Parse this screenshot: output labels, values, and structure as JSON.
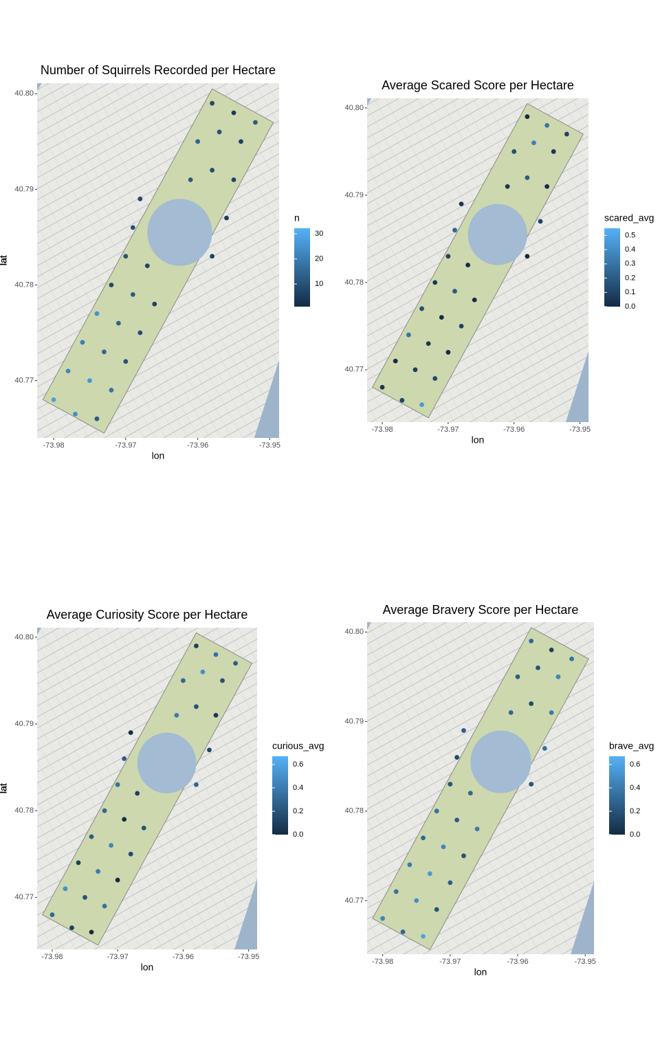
{
  "chart_data": [
    {
      "type": "scatter",
      "title": "Number of Squirrels Recorded per Hectare",
      "x_label": "lon",
      "y_label": "lat",
      "legend_title": "n",
      "x": [
        -73.98,
        -73.977,
        -73.974,
        -73.978,
        -73.975,
        -73.972,
        -73.976,
        -73.973,
        -73.97,
        -73.974,
        -73.971,
        -73.968,
        -73.972,
        -73.969,
        -73.966,
        -73.97,
        -73.967,
        -73.969,
        -73.968,
        -73.958,
        -73.956,
        -73.961,
        -73.958,
        -73.955,
        -73.96,
        -73.957,
        -73.954,
        -73.958,
        -73.955,
        -73.952
      ],
      "y": [
        40.768,
        40.7665,
        40.766,
        40.771,
        40.77,
        40.769,
        40.774,
        40.773,
        40.772,
        40.777,
        40.776,
        40.775,
        40.78,
        40.779,
        40.778,
        40.783,
        40.782,
        40.786,
        40.789,
        40.783,
        40.787,
        40.791,
        40.792,
        40.791,
        40.795,
        40.796,
        40.795,
        40.799,
        40.798,
        40.797
      ],
      "values": [
        28,
        24,
        12,
        22,
        26,
        18,
        20,
        15,
        10,
        25,
        14,
        9,
        8,
        12,
        6,
        10,
        7,
        9,
        8,
        6,
        5,
        12,
        9,
        7,
        14,
        10,
        6,
        8,
        5,
        12
      ],
      "xlim": [
        -73.9823,
        -73.9487
      ],
      "ylim": [
        40.764,
        40.8011
      ],
      "xticks": [
        -73.98,
        -73.97,
        -73.96,
        -73.95
      ],
      "yticks": [
        40.77,
        40.78,
        40.79,
        {
          "value": 40.8,
          "label": "40.80"
        }
      ],
      "color_low": "#132b43",
      "color_high": "#56b1f7",
      "color_lim": [
        1,
        32.2
      ],
      "color_ticks": [
        10,
        20,
        30
      ]
    },
    {
      "type": "scatter",
      "title": "Average Scared Score per Hectare",
      "x_label": "lon",
      "y_label": "lat",
      "legend_title": "scared_avg",
      "x": [
        -73.98,
        -73.977,
        -73.974,
        -73.978,
        -73.975,
        -73.972,
        -73.976,
        -73.973,
        -73.97,
        -73.974,
        -73.971,
        -73.968,
        -73.972,
        -73.969,
        -73.966,
        -73.97,
        -73.967,
        -73.969,
        -73.968,
        -73.958,
        -73.956,
        -73.961,
        -73.958,
        -73.955,
        -73.96,
        -73.957,
        -73.954,
        -73.958,
        -73.955,
        -73.952
      ],
      "y": [
        40.768,
        40.7665,
        40.766,
        40.771,
        40.77,
        40.769,
        40.774,
        40.773,
        40.772,
        40.777,
        40.776,
        40.775,
        40.78,
        40.779,
        40.778,
        40.783,
        40.782,
        40.786,
        40.789,
        40.783,
        40.787,
        40.791,
        40.792,
        40.791,
        40.795,
        40.796,
        40.795,
        40.799,
        40.798,
        40.797
      ],
      "values": [
        0.05,
        0.1,
        0.45,
        0.0,
        0.08,
        0.12,
        0.3,
        0.05,
        0.0,
        0.15,
        0.0,
        0.1,
        0.05,
        0.2,
        0.0,
        0.1,
        0.0,
        0.25,
        0.05,
        0.0,
        0.1,
        0.05,
        0.2,
        0.0,
        0.15,
        0.35,
        0.05,
        0.0,
        0.3,
        0.1
      ],
      "xlim": [
        -73.9823,
        -73.9487
      ],
      "ylim": [
        40.764,
        40.8011
      ],
      "xticks": [
        -73.98,
        -73.97,
        -73.96,
        -73.95
      ],
      "yticks": [
        40.77,
        40.78,
        40.79,
        {
          "value": 40.8,
          "label": "40.80"
        }
      ],
      "color_low": "#132b43",
      "color_high": "#56b1f7",
      "color_lim": [
        0,
        0.55
      ],
      "color_ticks": [
        {
          "value": 0,
          "label": "0.0"
        },
        0.1,
        0.2,
        0.3,
        0.4,
        0.5
      ]
    },
    {
      "type": "scatter",
      "title": "Average Curiosity Score per Hectare",
      "x_label": "lon",
      "y_label": "lat",
      "legend_title": "curious_avg",
      "x": [
        -73.98,
        -73.977,
        -73.974,
        -73.978,
        -73.975,
        -73.972,
        -73.976,
        -73.973,
        -73.97,
        -73.974,
        -73.971,
        -73.968,
        -73.972,
        -73.969,
        -73.966,
        -73.97,
        -73.967,
        -73.969,
        -73.968,
        -73.958,
        -73.956,
        -73.961,
        -73.958,
        -73.955,
        -73.96,
        -73.957,
        -73.954,
        -73.958,
        -73.955,
        -73.952
      ],
      "y": [
        40.768,
        40.7665,
        40.766,
        40.771,
        40.77,
        40.769,
        40.774,
        40.773,
        40.772,
        40.777,
        40.776,
        40.775,
        40.78,
        40.779,
        40.778,
        40.783,
        40.782,
        40.786,
        40.789,
        40.783,
        40.787,
        40.791,
        40.792,
        40.791,
        40.795,
        40.796,
        40.795,
        40.799,
        40.798,
        40.797
      ],
      "values": [
        0.3,
        0.1,
        0.0,
        0.5,
        0.2,
        0.35,
        0.1,
        0.4,
        0.0,
        0.25,
        0.45,
        0.15,
        0.3,
        0.0,
        0.2,
        0.35,
        0.1,
        0.25,
        0.0,
        0.3,
        0.15,
        0.4,
        0.2,
        0.05,
        0.3,
        0.5,
        0.2,
        0.1,
        0.35,
        0.25
      ],
      "xlim": [
        -73.9823,
        -73.9487
      ],
      "ylim": [
        40.764,
        40.8011
      ],
      "xticks": [
        -73.98,
        -73.97,
        -73.96,
        -73.95
      ],
      "yticks": [
        40.77,
        40.78,
        40.79,
        {
          "value": 40.8,
          "label": "40.80"
        }
      ],
      "color_low": "#132b43",
      "color_high": "#56b1f7",
      "color_lim": [
        0,
        0.67
      ],
      "color_ticks": [
        {
          "value": 0,
          "label": "0.0"
        },
        0.2,
        0.4,
        0.6
      ]
    },
    {
      "type": "scatter",
      "title": "Average Bravery Score per Hectare",
      "x_label": "lon",
      "y_label": "lat",
      "legend_title": "brave_avg",
      "x": [
        -73.98,
        -73.977,
        -73.974,
        -73.978,
        -73.975,
        -73.972,
        -73.976,
        -73.973,
        -73.97,
        -73.974,
        -73.971,
        -73.968,
        -73.972,
        -73.969,
        -73.966,
        -73.97,
        -73.967,
        -73.969,
        -73.968,
        -73.958,
        -73.956,
        -73.961,
        -73.958,
        -73.955,
        -73.96,
        -73.957,
        -73.954,
        -73.958,
        -73.955,
        -73.952
      ],
      "y": [
        40.768,
        40.7665,
        40.766,
        40.771,
        40.77,
        40.769,
        40.774,
        40.773,
        40.772,
        40.777,
        40.776,
        40.775,
        40.78,
        40.779,
        40.778,
        40.783,
        40.782,
        40.786,
        40.789,
        40.783,
        40.787,
        40.791,
        40.792,
        40.791,
        40.795,
        40.796,
        40.795,
        40.799,
        40.798,
        40.797
      ],
      "values": [
        0.45,
        0.3,
        0.6,
        0.35,
        0.5,
        0.2,
        0.4,
        0.55,
        0.25,
        0.3,
        0.45,
        0.2,
        0.35,
        0.25,
        0.4,
        0.2,
        0.3,
        0.15,
        0.25,
        0.2,
        0.35,
        0.3,
        0.15,
        0.4,
        0.25,
        0.2,
        0.45,
        0.3,
        0.1,
        0.35
      ],
      "xlim": [
        -73.9823,
        -73.9487
      ],
      "ylim": [
        40.764,
        40.8011
      ],
      "xticks": [
        -73.98,
        -73.97,
        -73.96,
        -73.95
      ],
      "yticks": [
        40.77,
        40.78,
        40.79,
        {
          "value": 40.8,
          "label": "40.80"
        }
      ],
      "color_low": "#132b43",
      "color_high": "#56b1f7",
      "color_lim": [
        0,
        0.67
      ],
      "color_ticks": [
        {
          "value": 0,
          "label": "0.0"
        },
        0.2,
        0.4,
        0.6
      ]
    }
  ]
}
